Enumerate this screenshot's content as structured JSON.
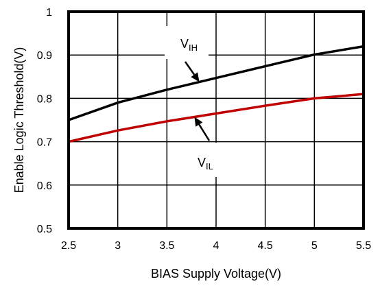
{
  "chart_data": {
    "type": "line",
    "title": "",
    "xlabel": "BIAS Supply Voltage(V)",
    "ylabel": "Enable Logic Threshold(V)",
    "xlim": [
      2.5,
      5.5
    ],
    "ylim": [
      0.5,
      1.0
    ],
    "grid": true,
    "x_ticks": [
      "2.5",
      "3",
      "3.5",
      "4",
      "4.5",
      "5",
      "5.5"
    ],
    "y_ticks": [
      "0.5",
      "0.6",
      "0.7",
      "0.8",
      "0.9",
      "1"
    ],
    "series": [
      {
        "name": "VIH",
        "color": "#000000",
        "x": [
          2.5,
          3.0,
          3.5,
          4.0,
          4.5,
          5.0,
          5.5
        ],
        "y": [
          0.75,
          0.79,
          0.82,
          0.847,
          0.874,
          0.901,
          0.92
        ]
      },
      {
        "name": "VIL",
        "color": "#c00000",
        "x": [
          2.5,
          3.0,
          3.5,
          4.0,
          4.5,
          5.0,
          5.5
        ],
        "y": [
          0.7,
          0.726,
          0.747,
          0.765,
          0.783,
          0.8,
          0.81
        ]
      }
    ],
    "annotations": [
      {
        "main": "V",
        "sub": "IH",
        "series": "VIH",
        "at_x": 3.83
      },
      {
        "main": "V",
        "sub": "IL",
        "series": "VIL",
        "at_x": 3.78
      }
    ]
  }
}
